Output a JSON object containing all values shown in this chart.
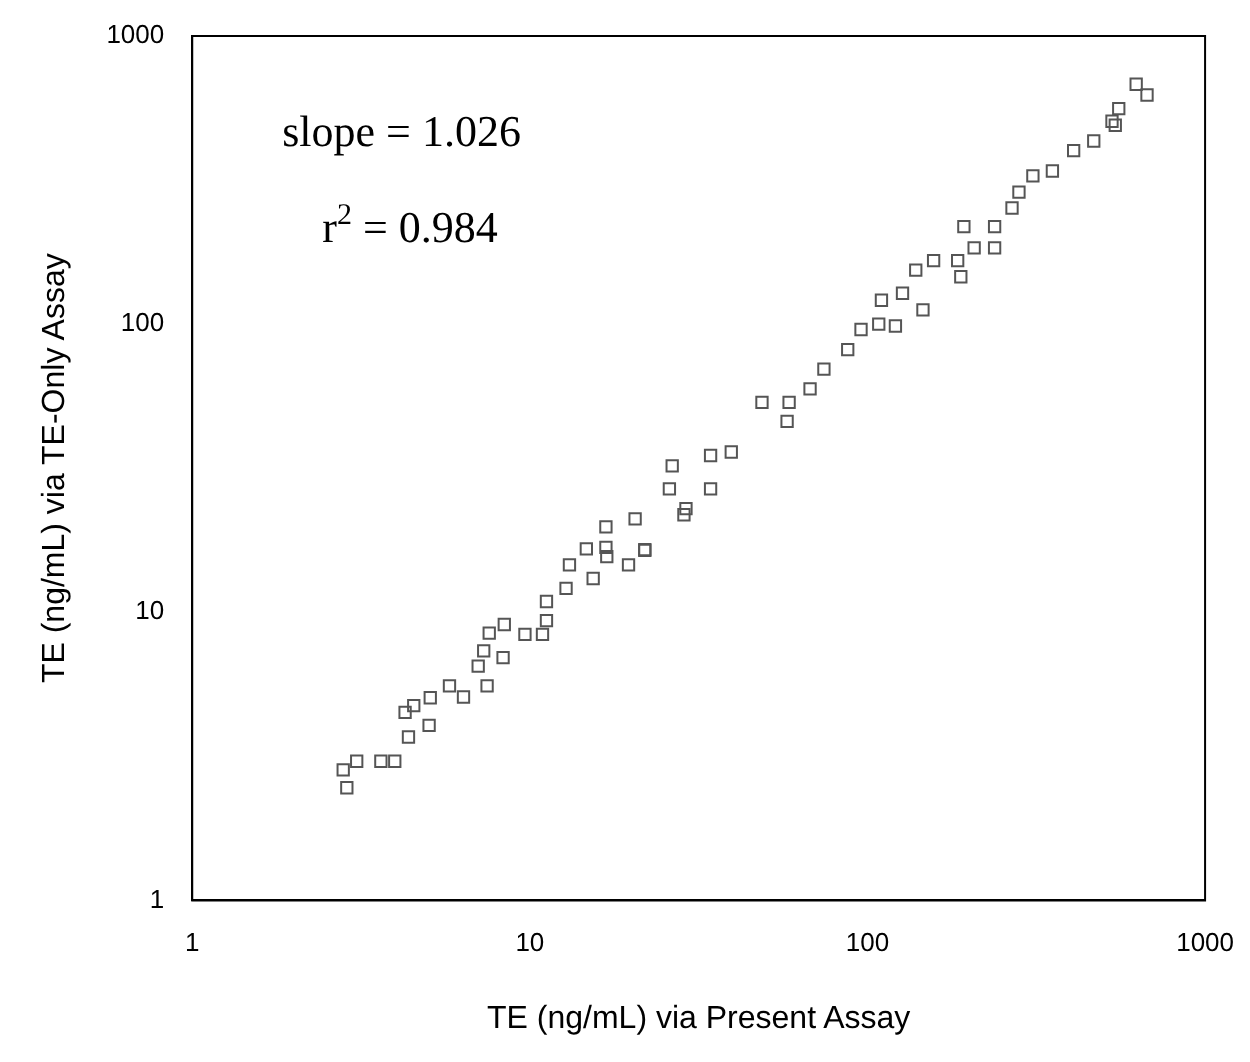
{
  "chart_data": {
    "type": "scatter",
    "xlabel": "TE (ng/mL) via Present Assay",
    "ylabel": "TE (ng/mL) via TE-Only Assay",
    "annotations": [
      "slope = 1.026",
      "r$^{2}$ = 0.984"
    ],
    "log": "xy",
    "xlim": [
      1,
      1000
    ],
    "ylim": [
      1,
      1000
    ],
    "xticks": [
      1,
      10,
      100,
      1000
    ],
    "yticks": [
      1,
      10,
      100,
      1000
    ],
    "grid": false,
    "legend": false,
    "marker": "square",
    "series": [
      {
        "color": "#555555",
        "x": [
          2.8,
          2.87,
          3.07,
          3.62,
          3.98,
          4.37,
          4.27,
          4.53,
          5.03,
          5.07,
          5.78,
          6.36,
          7.03,
          7.47,
          7.3,
          7.58,
          8.4,
          8.33,
          9.67,
          10.9,
          11.2,
          11.2,
          12.8,
          13.1,
          15.4,
          14.7,
          16.9,
          16.8,
          19.6,
          21.9,
          20.5,
          28.6,
          16.8,
          21.9,
          25.9,
          29,
          34.3,
          26.4,
          34.3,
          39.5,
          48.7,
          57.8,
          58.6,
          67.6,
          74.3,
          87.4,
          108,
          95.7,
          121,
          110,
          127,
          146,
          139,
          157,
          189,
          185,
          193,
          238,
          238,
          207,
          268,
          281,
          309,
          353,
          408,
          468,
          530,
          555,
          542,
          625,
          673
        ],
        "values": [
          2.84,
          2.46,
          3.04,
          3.04,
          3.04,
          3.69,
          4.49,
          4.74,
          4.05,
          5.05,
          5.55,
          5.08,
          6.5,
          5.55,
          7.35,
          8.46,
          9.07,
          6.96,
          8.38,
          8.38,
          10.9,
          9.35,
          12.1,
          14.6,
          13.1,
          16.6,
          15.6,
          19.8,
          14.6,
          16.4,
          21.1,
          21.8,
          16.8,
          16.5,
          26.8,
          22.9,
          26.8,
          32.2,
          35,
          36,
          53.5,
          46,
          53.5,
          59.6,
          69.8,
          81.6,
          100,
          95.8,
          98.5,
          121,
          128,
          112,
          154,
          166,
          146,
          166,
          218,
          218,
          184,
          184,
          253,
          287,
          327,
          340,
          400,
          432,
          506,
          560,
          490,
          680,
          624
        ]
      }
    ]
  }
}
